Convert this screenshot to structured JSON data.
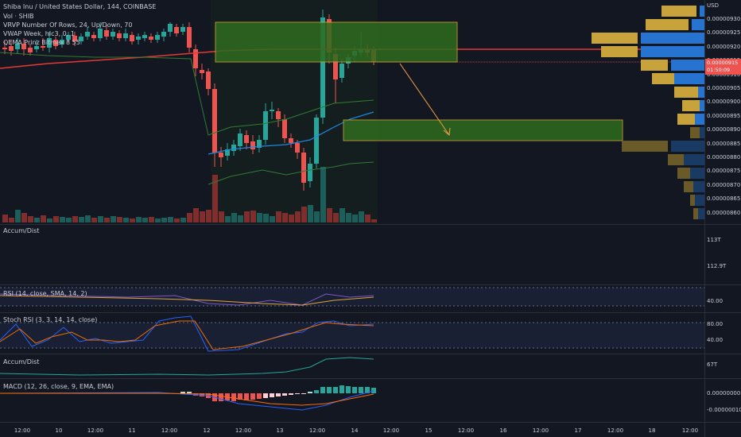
{
  "chart": {
    "title": "Shiba Inu / United States Dollar, 144, COINBASE",
    "indicators": [
      "Vol · SHIB",
      "VRVP Number Of Rows, 24, Up/Down, 70",
      "VWAP Week, hlc3, 0, 1",
      "QEMA Prinz Bitmex 8 55"
    ],
    "currency": "USD",
    "price_ticks": [
      "0.00000930",
      "0.00000925",
      "0.00000920",
      "0.00000915",
      "0.00000910",
      "0.00000905",
      "0.00000900",
      "0.00000895",
      "0.00000890",
      "0.00000885",
      "0.00000880",
      "0.00000875",
      "0.00000870",
      "0.00000865",
      "0.00000860"
    ],
    "last_price": "0.00000915",
    "countdown": "01:50:09"
  },
  "panes": {
    "accum1": {
      "label": "Accum/Dist",
      "ticks": [
        "113T",
        "112.9T"
      ]
    },
    "rsi": {
      "label": "RSI (14, close, SMA, 14, 2)",
      "tick": "40.00"
    },
    "stochrsi": {
      "label": "Stoch RSI (3, 3, 14, 14, close)",
      "ticks": [
        "80.00",
        "40.00"
      ]
    },
    "accum2": {
      "label": "Accum/Dist",
      "tick": "67T"
    },
    "macd": {
      "label": "MACD (12, 26, close, 9, EMA, EMA)",
      "ticks": [
        "0.00000000",
        "-0.00000010"
      ]
    }
  },
  "time_axis": [
    "12:00",
    "10",
    "12:00",
    "11",
    "12:00",
    "12",
    "12:00",
    "13",
    "12:00",
    "14",
    "12:00",
    "15",
    "12:00",
    "16",
    "12:00",
    "17",
    "12:00",
    "18",
    "12:00"
  ],
  "colors": {
    "bull": "#26a69a",
    "bear": "#ef5350",
    "zone": "#2e6b1f",
    "zone_border": "#c8a23a",
    "arrow": "#f29f4a"
  }
}
